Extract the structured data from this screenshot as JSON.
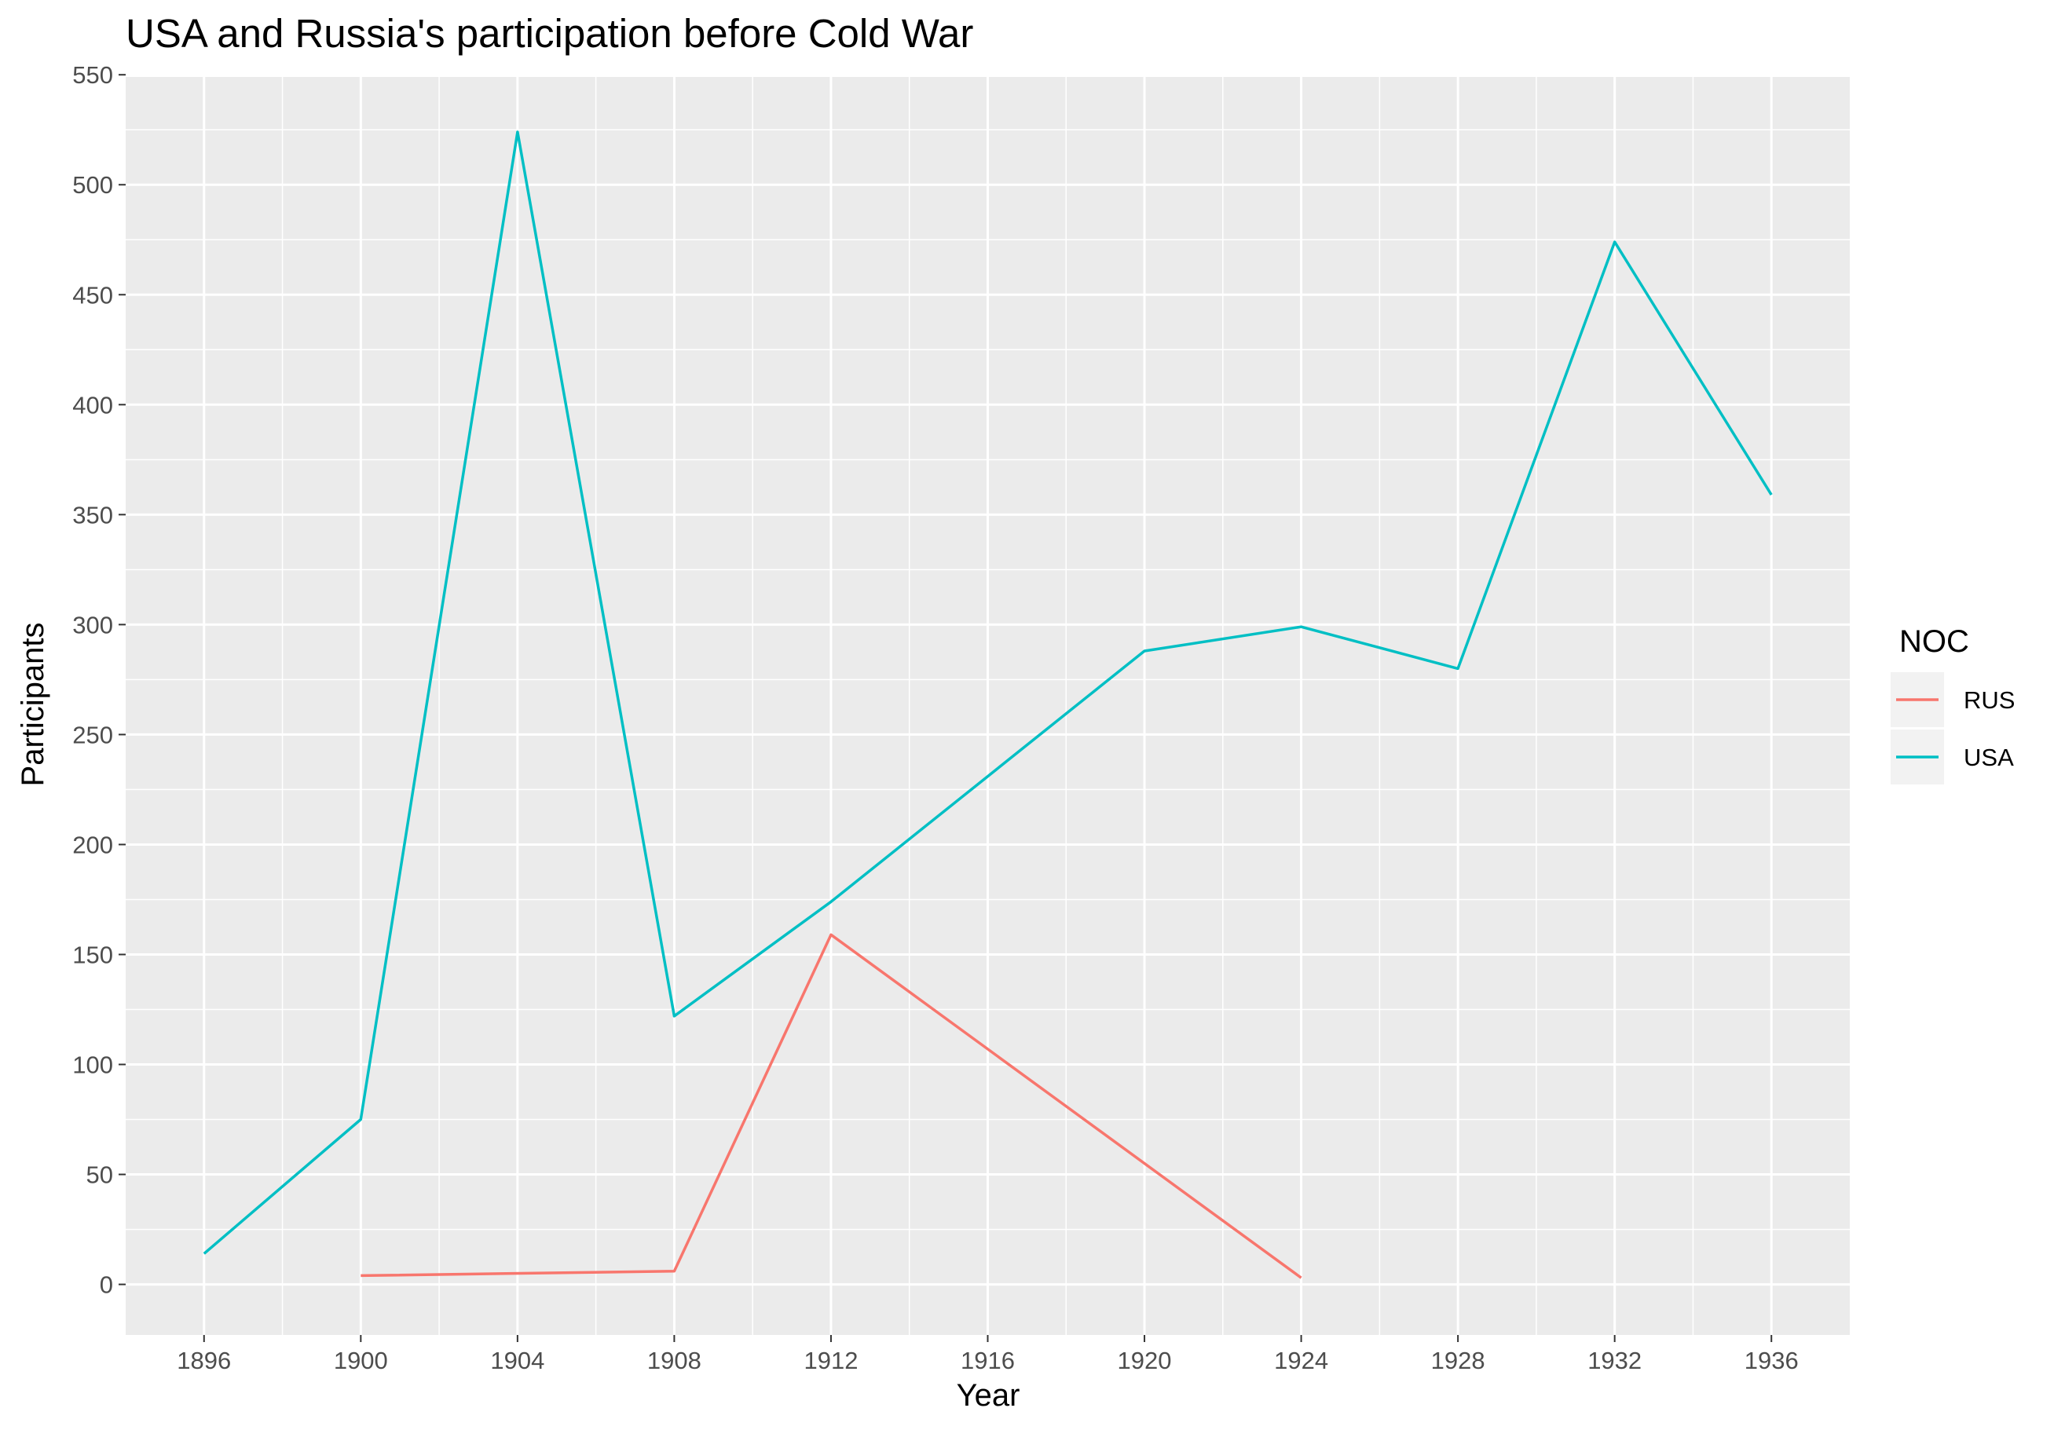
{
  "chart_data": {
    "type": "line",
    "title": "USA and Russia's participation before Cold War",
    "xlabel": "Year",
    "ylabel": "Participants",
    "x_ticks": [
      1896,
      1900,
      1904,
      1908,
      1912,
      1916,
      1920,
      1924,
      1928,
      1932,
      1936
    ],
    "y_ticks": [
      0,
      50,
      100,
      150,
      200,
      250,
      300,
      350,
      400,
      450,
      500,
      550
    ],
    "xlim": [
      1894,
      1938
    ],
    "ylim": [
      -23,
      549
    ],
    "grid": true,
    "legend": {
      "title": "NOC",
      "position": "right"
    },
    "series": [
      {
        "name": "RUS",
        "color": "#F8766D",
        "x": [
          1900,
          1908,
          1912,
          1924
        ],
        "values": [
          4,
          6,
          159,
          3
        ]
      },
      {
        "name": "USA",
        "color": "#00BFC4",
        "x": [
          1896,
          1900,
          1904,
          1908,
          1912,
          1920,
          1924,
          1928,
          1932,
          1936
        ],
        "values": [
          14,
          75,
          524,
          122,
          174,
          288,
          299,
          280,
          474,
          359
        ]
      }
    ]
  }
}
